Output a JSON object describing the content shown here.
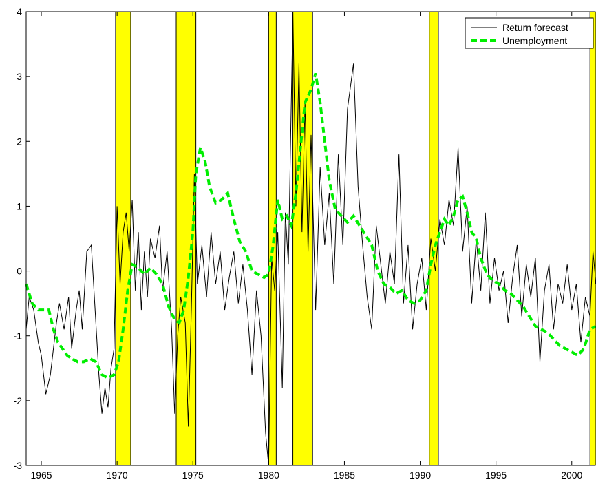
{
  "chart_data": {
    "type": "line",
    "xlim": [
      1964,
      2001.6
    ],
    "ylim": [
      -3,
      4
    ],
    "x_ticks": [
      1965,
      1970,
      1975,
      1980,
      1985,
      1990,
      1995,
      2000
    ],
    "y_ticks": [
      -3,
      -2,
      -1,
      0,
      1,
      2,
      3,
      4
    ],
    "x_tick_labels": [
      "1965",
      "1970",
      "1975",
      "1980",
      "1985",
      "1990",
      "1995",
      "2000"
    ],
    "y_tick_labels": [
      "-3",
      "-2",
      "-1",
      "0",
      "1",
      "2",
      "3",
      "4"
    ],
    "legend_position": "top-right",
    "grid": false,
    "recession_bands": [
      [
        1969.9,
        1970.9
      ],
      [
        1973.9,
        1975.2
      ],
      [
        1980.0,
        1980.5
      ],
      [
        1981.6,
        1982.9
      ],
      [
        1990.6,
        1991.2
      ],
      [
        2001.2,
        2001.6
      ]
    ],
    "band_color": "#ffff00",
    "series": [
      {
        "name": "Return forecast",
        "color": "#000000",
        "style": "solid",
        "x": [
          1964.0,
          1964.2,
          1964.5,
          1964.8,
          1965.0,
          1965.3,
          1965.6,
          1966.0,
          1966.2,
          1966.5,
          1966.8,
          1967.0,
          1967.3,
          1967.5,
          1967.7,
          1968.0,
          1968.3,
          1968.6,
          1968.8,
          1969.0,
          1969.2,
          1969.4,
          1969.6,
          1969.8,
          1970.0,
          1970.2,
          1970.4,
          1970.6,
          1970.8,
          1971.0,
          1971.2,
          1971.4,
          1971.6,
          1971.8,
          1972.0,
          1972.2,
          1972.5,
          1972.8,
          1973.0,
          1973.3,
          1973.6,
          1973.8,
          1974.0,
          1974.2,
          1974.5,
          1974.7,
          1974.9,
          1975.1,
          1975.3,
          1975.6,
          1975.9,
          1976.2,
          1976.5,
          1976.8,
          1977.1,
          1977.4,
          1977.7,
          1978.0,
          1978.3,
          1978.6,
          1978.9,
          1979.2,
          1979.5,
          1979.8,
          1980.0,
          1980.2,
          1980.4,
          1980.6,
          1980.9,
          1981.1,
          1981.3,
          1981.6,
          1981.8,
          1982.0,
          1982.2,
          1982.4,
          1982.6,
          1982.8,
          1983.1,
          1983.4,
          1983.7,
          1984.0,
          1984.3,
          1984.6,
          1984.9,
          1985.2,
          1985.6,
          1985.9,
          1986.2,
          1986.5,
          1986.8,
          1987.1,
          1987.4,
          1987.7,
          1988.0,
          1988.3,
          1988.6,
          1988.9,
          1989.2,
          1989.5,
          1989.8,
          1990.1,
          1990.4,
          1990.7,
          1991.0,
          1991.3,
          1991.6,
          1991.9,
          1992.2,
          1992.5,
          1992.8,
          1993.1,
          1993.4,
          1993.7,
          1994.0,
          1994.3,
          1994.6,
          1994.9,
          1995.2,
          1995.5,
          1995.8,
          1996.1,
          1996.4,
          1996.7,
          1997.0,
          1997.3,
          1997.6,
          1997.9,
          1998.2,
          1998.5,
          1998.8,
          1999.1,
          1999.4,
          1999.7,
          2000.0,
          2000.3,
          2000.6,
          2000.9,
          2001.2,
          2001.4,
          2001.6
        ],
        "y": [
          -0.9,
          -0.4,
          -0.6,
          -1.1,
          -1.3,
          -1.9,
          -1.6,
          -0.8,
          -0.5,
          -0.9,
          -0.4,
          -1.2,
          -0.6,
          -0.3,
          -0.9,
          0.3,
          0.4,
          -0.8,
          -1.6,
          -2.2,
          -1.8,
          -2.1,
          -1.5,
          -1.2,
          1.0,
          -0.2,
          0.6,
          0.9,
          0.3,
          1.1,
          -0.3,
          0.6,
          -0.6,
          0.3,
          -0.4,
          0.5,
          0.2,
          0.7,
          -0.3,
          0.3,
          -0.9,
          -2.2,
          -1.0,
          -0.4,
          -0.8,
          -2.4,
          -0.6,
          1.5,
          -0.2,
          0.4,
          -0.4,
          0.6,
          -0.2,
          0.3,
          -0.6,
          -0.1,
          0.3,
          -0.5,
          0.1,
          -0.6,
          -1.6,
          -0.3,
          -1.0,
          -2.5,
          -3.0,
          0.2,
          -0.3,
          0.6,
          -1.8,
          0.9,
          0.1,
          4.0,
          1.0,
          3.2,
          0.6,
          2.6,
          0.3,
          2.1,
          -0.6,
          1.6,
          0.4,
          1.2,
          -0.2,
          1.8,
          0.4,
          2.5,
          3.2,
          1.3,
          0.4,
          -0.4,
          -0.9,
          0.7,
          0.1,
          -0.5,
          0.3,
          -0.2,
          1.8,
          -0.5,
          0.4,
          -0.9,
          -0.2,
          0.2,
          -0.6,
          0.5,
          0.0,
          0.8,
          0.4,
          1.1,
          0.7,
          1.9,
          0.3,
          1.0,
          -0.5,
          0.5,
          -0.3,
          0.9,
          -0.5,
          0.2,
          -0.3,
          0.0,
          -0.8,
          -0.1,
          0.4,
          -0.7,
          0.1,
          -0.4,
          0.2,
          -1.4,
          -0.3,
          0.1,
          -0.9,
          -0.2,
          -0.5,
          0.1,
          -0.6,
          -0.2,
          -1.1,
          -0.4,
          -0.7,
          0.3,
          -0.2
        ]
      },
      {
        "name": "Unemployment",
        "color": "#00ee00",
        "style": "dashed",
        "x": [
          1964.0,
          1964.4,
          1964.8,
          1965.2,
          1965.5,
          1965.8,
          1966.1,
          1966.4,
          1966.7,
          1967.0,
          1967.4,
          1967.8,
          1968.2,
          1968.6,
          1969.0,
          1969.4,
          1969.8,
          1970.1,
          1970.4,
          1970.7,
          1971.0,
          1971.4,
          1971.8,
          1972.2,
          1972.6,
          1973.0,
          1973.4,
          1973.8,
          1974.1,
          1974.4,
          1974.7,
          1975.0,
          1975.2,
          1975.5,
          1975.8,
          1976.1,
          1976.5,
          1976.9,
          1977.3,
          1977.7,
          1978.1,
          1978.5,
          1978.9,
          1979.3,
          1979.7,
          1980.0,
          1980.3,
          1980.6,
          1980.9,
          1981.2,
          1981.5,
          1981.8,
          1982.1,
          1982.4,
          1982.8,
          1983.1,
          1983.4,
          1983.7,
          1984.0,
          1984.4,
          1984.8,
          1985.2,
          1985.6,
          1986.0,
          1986.4,
          1986.8,
          1987.2,
          1987.6,
          1988.0,
          1988.4,
          1988.8,
          1989.2,
          1989.6,
          1990.0,
          1990.4,
          1990.7,
          1991.0,
          1991.3,
          1991.6,
          1991.9,
          1992.2,
          1992.5,
          1992.8,
          1993.1,
          1993.4,
          1993.7,
          1994.0,
          1994.4,
          1994.8,
          1995.2,
          1995.6,
          1996.0,
          1996.4,
          1996.8,
          1997.2,
          1997.6,
          1998.0,
          1998.4,
          1998.8,
          1999.2,
          1999.6,
          2000.0,
          2000.4,
          2000.8,
          2001.2,
          2001.6
        ],
        "y": [
          -0.2,
          -0.5,
          -0.6,
          -0.6,
          -0.6,
          -0.9,
          -1.1,
          -1.2,
          -1.3,
          -1.35,
          -1.4,
          -1.4,
          -1.35,
          -1.4,
          -1.6,
          -1.65,
          -1.6,
          -1.4,
          -0.9,
          -0.3,
          0.1,
          0.05,
          -0.05,
          0.05,
          -0.05,
          -0.2,
          -0.55,
          -0.75,
          -0.8,
          -0.6,
          -0.1,
          0.6,
          1.5,
          1.9,
          1.7,
          1.3,
          1.05,
          1.1,
          1.2,
          0.8,
          0.45,
          0.3,
          0.0,
          -0.05,
          -0.1,
          -0.05,
          0.4,
          1.1,
          0.8,
          0.85,
          0.7,
          1.2,
          1.9,
          2.6,
          2.8,
          3.05,
          2.6,
          2.0,
          1.4,
          0.95,
          0.85,
          0.75,
          0.85,
          0.7,
          0.55,
          0.4,
          0.0,
          -0.2,
          -0.25,
          -0.35,
          -0.3,
          -0.45,
          -0.5,
          -0.45,
          -0.3,
          0.1,
          0.4,
          0.6,
          0.8,
          0.7,
          0.85,
          1.1,
          1.15,
          0.9,
          0.6,
          0.5,
          0.2,
          -0.05,
          -0.15,
          -0.2,
          -0.3,
          -0.35,
          -0.45,
          -0.55,
          -0.7,
          -0.85,
          -0.9,
          -0.95,
          -1.05,
          -1.15,
          -1.2,
          -1.25,
          -1.3,
          -1.2,
          -0.9,
          -0.85
        ]
      }
    ]
  }
}
